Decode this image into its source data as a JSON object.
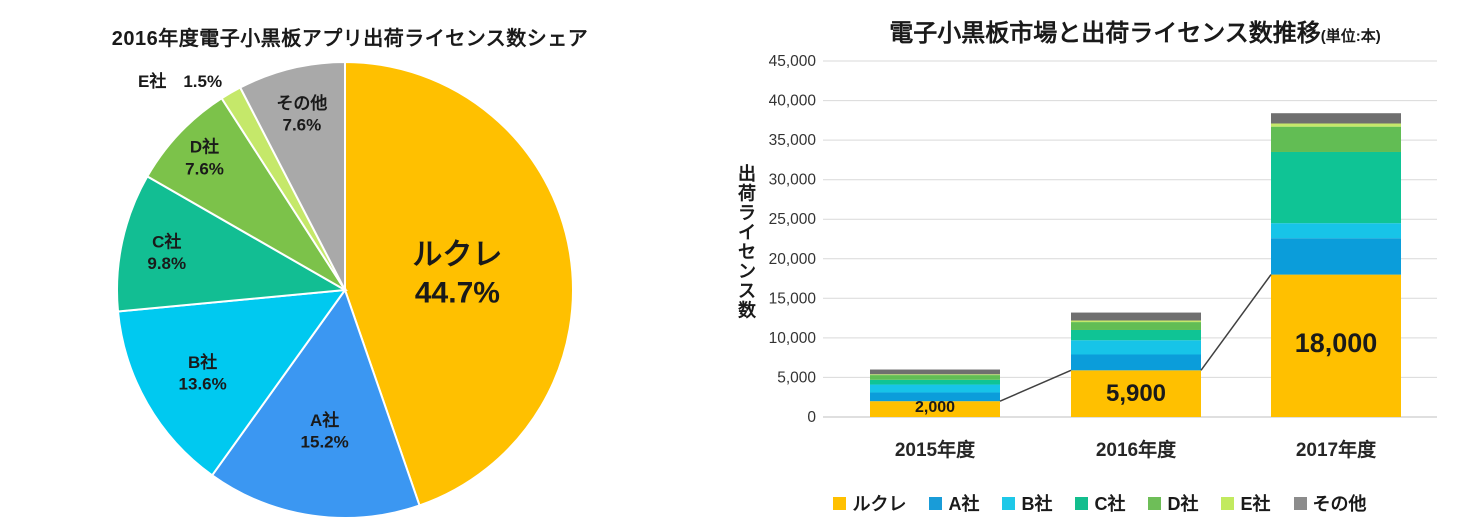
{
  "page": {
    "background": "#FFFFFF"
  },
  "pie_title": "2016年度電子小黒板アプリ出荷ライセンス数シェア",
  "bar_title": "電子小黒板市場と出荷ライセンス数推移",
  "bar_title_suffix": "(単位:本)",
  "chart_data": [
    {
      "id": "license-share-pie",
      "type": "pie",
      "title": "2016年度電子小黒板アプリ出荷ライセンス数シェア",
      "labels": [
        "ルクレ",
        "A社",
        "B社",
        "C社",
        "D社",
        "E社",
        "その他"
      ],
      "values": [
        44.7,
        15.2,
        13.6,
        9.8,
        7.6,
        1.5,
        7.6
      ],
      "value_labels": [
        "44.7%",
        "15.2%",
        "13.6%",
        "9.8%",
        "7.6%",
        "1.5%",
        "7.6%"
      ],
      "unit": "%",
      "start_angle": "12-oclock",
      "direction": "clockwise",
      "colors": [
        "#FFC000",
        "#3B97F2",
        "#00C9F0",
        "#12BE93",
        "#7CC24A",
        "#C5E86A",
        "#A9A9A9"
      ]
    },
    {
      "id": "license-trend-bars",
      "type": "bar",
      "stacked": true,
      "title": "電子小黒板市場と出荷ライセンス数推移",
      "title_suffix": "(単位:本)",
      "ylabel": "出荷ライセンス数",
      "categories": [
        "2015年度",
        "2016年度",
        "2017年度"
      ],
      "series": [
        {
          "name": "ルクレ",
          "values": [
            2000,
            5900,
            18000
          ],
          "color": "#FFC000"
        },
        {
          "name": "A社",
          "values": [
            1100,
            2000,
            4600
          ],
          "color": "#0B9DDA"
        },
        {
          "name": "B社",
          "values": [
            1000,
            1800,
            1900
          ],
          "color": "#17C4E8"
        },
        {
          "name": "C社",
          "values": [
            600,
            1300,
            9000
          ],
          "color": "#0FC495"
        },
        {
          "name": "D社",
          "values": [
            600,
            1000,
            3200
          ],
          "color": "#62BD54"
        },
        {
          "name": "E社",
          "values": [
            100,
            200,
            400
          ],
          "color": "#C5E86A"
        },
        {
          "name": "その他",
          "values": [
            600,
            1000,
            1300
          ],
          "color": "#6F6F6F"
        }
      ],
      "bar_value_labels": [
        "2,000",
        "5,900",
        "18,000"
      ],
      "ylim": [
        0,
        45000
      ],
      "ytick_step": 5000,
      "ytick_labels": [
        "0",
        "5,000",
        "10,000",
        "15,000",
        "20,000",
        "25,000",
        "30,000",
        "35,000",
        "40,000",
        "45,000"
      ],
      "grid": true,
      "line_overlay_series": "ルクレ",
      "legend": {
        "position": "bottom",
        "items": [
          {
            "label": "ルクレ",
            "color": "#FFC000"
          },
          {
            "label": "A社",
            "color": "#199CD8"
          },
          {
            "label": "B社",
            "color": "#1EC8E8"
          },
          {
            "label": "C社",
            "color": "#13BE8E"
          },
          {
            "label": "D社",
            "color": "#6EBE58"
          },
          {
            "label": "E社",
            "color": "#C2EA5F"
          },
          {
            "label": "その他",
            "color": "#8C8C8C"
          }
        ]
      }
    }
  ]
}
